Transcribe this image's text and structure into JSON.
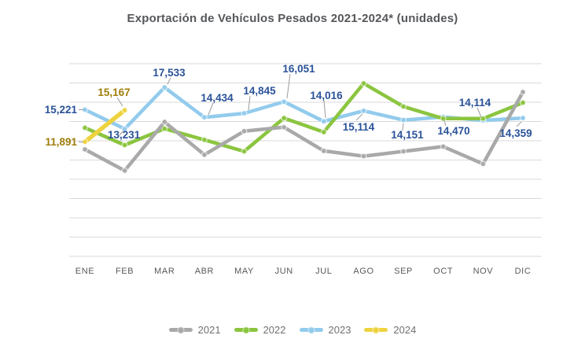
{
  "title": "Exportación de Vehículos Pesados 2021-2024* (unidades)",
  "chart_data": {
    "type": "line",
    "title": "Exportación de Vehículos Pesados 2021-2024* (unidades)",
    "categories": [
      "ENE",
      "FEB",
      "MAR",
      "ABR",
      "MAY",
      "JUN",
      "JUL",
      "AGO",
      "SEP",
      "OCT",
      "NOV",
      "DIC"
    ],
    "series": [
      {
        "name": "2021",
        "color": "#a9a9a9",
        "values": [
          11100,
          8900,
          13950,
          10550,
          13000,
          13400,
          10950,
          10400,
          10900,
          11400,
          9600,
          17050
        ]
      },
      {
        "name": "2022",
        "color": "#8bc53f",
        "values": [
          13350,
          11550,
          13250,
          12100,
          10900,
          14350,
          12900,
          17950,
          15550,
          14300,
          14300,
          15950
        ]
      },
      {
        "name": "2023",
        "color": "#92cbec",
        "label_color": "#2a5298",
        "values": [
          15221,
          13231,
          17533,
          14434,
          14845,
          16051,
          14016,
          15114,
          14151,
          14470,
          14114,
          14359
        ]
      },
      {
        "name": "2024",
        "color": "#eed33f",
        "label_color": "#a07d0a",
        "values": [
          11891,
          15167,
          null,
          null,
          null,
          null,
          null,
          null,
          null,
          null,
          null,
          null
        ]
      }
    ],
    "labeled_series": [
      "2023",
      "2024"
    ],
    "ylim": [
      0,
      20000
    ],
    "gridline_step": 2000,
    "grid": "horizontal",
    "y_axis_labels_shown": false,
    "legend_position": "bottom",
    "colors": {
      "gridline": "#dadada",
      "axis_text": "#58595b",
      "leader_line": "#a3a3a3",
      "title_text": "#55575a",
      "legend_text": "#6f7173"
    }
  }
}
